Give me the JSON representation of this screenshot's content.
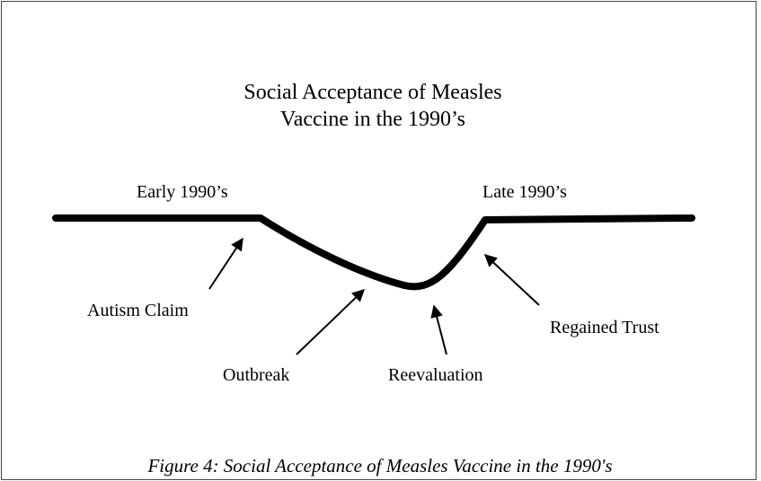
{
  "title": {
    "line1": "Social Acceptance of Measles",
    "line2": "Vaccine in the 1990’s"
  },
  "periods": {
    "start": "Early 1990’s",
    "end": "Late 1990’s"
  },
  "events": [
    "Autism Claim",
    "Outbreak",
    "Reevaluation",
    "Regained Trust"
  ],
  "caption": "Figure 4: Social Acceptance of Measles Vaccine in the 1990's"
}
